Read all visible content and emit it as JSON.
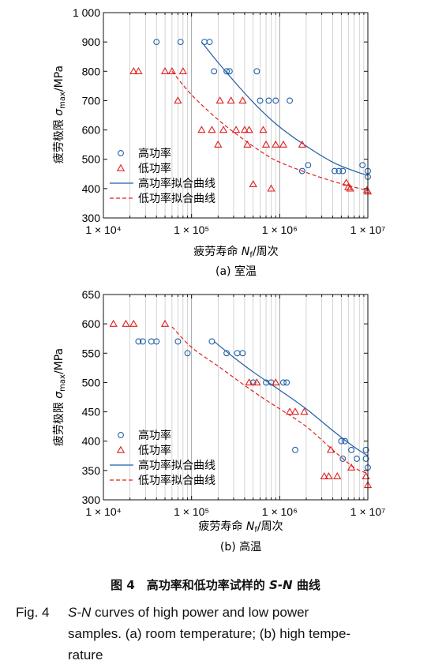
{
  "panels": [
    {
      "caption": "(a) 室温",
      "ylabel_main": "疲劳极限 ",
      "ylabel_sigma": "σ",
      "ylabel_sub": "max",
      "ylabel_unit": "/MPa",
      "xlabel_main": "疲劳寿命 ",
      "xlabel_n": "N",
      "xlabel_sub": "f",
      "xlabel_unit": "/周次",
      "legend": [
        "高功率",
        "低功率",
        "高功率拟合曲线",
        "低功率拟合曲线"
      ]
    },
    {
      "caption": "(b) 高温",
      "ylabel_main": "疲劳极限 ",
      "ylabel_sigma": "σ",
      "ylabel_sub": "max",
      "ylabel_unit": "/MPa",
      "xlabel_main": "疲劳寿命 ",
      "xlabel_n": "N",
      "xlabel_sub": "f",
      "xlabel_unit": "/周次",
      "legend": [
        "高功率",
        "低功率",
        "高功率拟合曲线",
        "低功率拟合曲线"
      ]
    }
  ],
  "caption": {
    "zh_prefix": "图 4　高功率和低功率试样的 ",
    "zh_sn": "S-N",
    "zh_suffix": " 曲线",
    "en_label": "Fig. 4",
    "en_sn": "S-N",
    "en_line1": " curves of high power and low power",
    "en_line2": "samples. (a) room temperature; (b) high tempe-",
    "en_line3": "rature"
  },
  "colors": {
    "high": "#1f5fa8",
    "low": "#e02020"
  },
  "chart_data": [
    {
      "type": "scatter",
      "x_scale": "log",
      "xlim": [
        10000,
        10000000
      ],
      "ylim": [
        300,
        1000
      ],
      "x_ticks": [
        10000,
        100000,
        1000000,
        10000000
      ],
      "x_tick_labels": [
        "1 × 10⁴",
        "1 × 10⁵",
        "1 × 10⁶",
        "1 × 10⁷"
      ],
      "y_ticks": [
        300,
        400,
        500,
        600,
        700,
        800,
        900,
        1000
      ],
      "y_tick_labels": [
        "300",
        "400",
        "500",
        "600",
        "700",
        "800",
        "900",
        "1 000"
      ],
      "grid": "vertical",
      "legend_position": "bottom-left",
      "series": [
        {
          "name": "高功率",
          "marker": "circle",
          "color": "#1f5fa8",
          "points": [
            [
              40000,
              900
            ],
            [
              75000,
              900
            ],
            [
              140000,
              900
            ],
            [
              160000,
              900
            ],
            [
              180000,
              800
            ],
            [
              250000,
              800
            ],
            [
              270000,
              800
            ],
            [
              550000,
              800
            ],
            [
              600000,
              700
            ],
            [
              750000,
              700
            ],
            [
              900000,
              700
            ],
            [
              1300000,
              700
            ],
            [
              1800000,
              460
            ],
            [
              2100000,
              480
            ],
            [
              4200000,
              460
            ],
            [
              4700000,
              460
            ],
            [
              5200000,
              460
            ],
            [
              8700000,
              480
            ],
            [
              10000000,
              460
            ],
            [
              10000000,
              440
            ]
          ]
        },
        {
          "name": "低功率",
          "marker": "triangle",
          "color": "#e02020",
          "points": [
            [
              22000,
              800
            ],
            [
              25000,
              800
            ],
            [
              50000,
              800
            ],
            [
              60000,
              800
            ],
            [
              70000,
              700
            ],
            [
              80000,
              800
            ],
            [
              130000,
              600
            ],
            [
              170000,
              600
            ],
            [
              200000,
              550
            ],
            [
              210000,
              700
            ],
            [
              230000,
              600
            ],
            [
              280000,
              700
            ],
            [
              320000,
              600
            ],
            [
              380000,
              700
            ],
            [
              400000,
              600
            ],
            [
              430000,
              550
            ],
            [
              450000,
              600
            ],
            [
              500000,
              415
            ],
            [
              650000,
              600
            ],
            [
              700000,
              550
            ],
            [
              800000,
              400
            ],
            [
              900000,
              550
            ],
            [
              1100000,
              550
            ],
            [
              1800000,
              550
            ],
            [
              5700000,
              420
            ],
            [
              6000000,
              405
            ],
            [
              6300000,
              400
            ],
            [
              9800000,
              395
            ],
            [
              10000000,
              390
            ]
          ]
        },
        {
          "name": "高功率拟合曲线",
          "line": "solid",
          "color": "#1f5fa8",
          "x": [
            130000,
            200000,
            350000,
            600000,
            1000000,
            2000000,
            4000000,
            7000000,
            10000000
          ],
          "y": [
            900,
            830,
            745,
            670,
            610,
            545,
            490,
            460,
            445
          ]
        },
        {
          "name": "低功率拟合曲线",
          "line": "dashed",
          "color": "#e02020",
          "x": [
            60000,
            100000,
            200000,
            400000,
            700000,
            1000000,
            2000000,
            4000000,
            7000000,
            10000000
          ],
          "y": [
            800,
            720,
            635,
            565,
            515,
            490,
            455,
            425,
            405,
            393
          ]
        }
      ]
    },
    {
      "type": "scatter",
      "x_scale": "log",
      "xlim": [
        10000,
        10000000
      ],
      "ylim": [
        300,
        650
      ],
      "x_ticks": [
        10000,
        100000,
        1000000,
        10000000
      ],
      "x_tick_labels": [
        "1 × 10⁴",
        "1 × 10⁵",
        "1 × 10⁶",
        "1 × 10⁷"
      ],
      "y_ticks": [
        300,
        350,
        400,
        450,
        500,
        550,
        600,
        650
      ],
      "y_tick_labels": [
        "300",
        "350",
        "400",
        "450",
        "500",
        "550",
        "600",
        "650"
      ],
      "grid": "vertical",
      "legend_position": "bottom-left",
      "series": [
        {
          "name": "高功率",
          "marker": "circle",
          "color": "#1f5fa8",
          "points": [
            [
              25000,
              570
            ],
            [
              28000,
              570
            ],
            [
              35000,
              570
            ],
            [
              40000,
              570
            ],
            [
              70000,
              570
            ],
            [
              90000,
              550
            ],
            [
              170000,
              570
            ],
            [
              250000,
              550
            ],
            [
              330000,
              550
            ],
            [
              380000,
              550
            ],
            [
              500000,
              500
            ],
            [
              700000,
              500
            ],
            [
              800000,
              500
            ],
            [
              1100000,
              500
            ],
            [
              1200000,
              500
            ],
            [
              1500000,
              385
            ],
            [
              5000000,
              400
            ],
            [
              5500000,
              400
            ],
            [
              5200000,
              370
            ],
            [
              6500000,
              385
            ],
            [
              7500000,
              370
            ],
            [
              9500000,
              385
            ],
            [
              9500000,
              370
            ],
            [
              10000000,
              355
            ]
          ]
        },
        {
          "name": "低功率",
          "marker": "triangle",
          "color": "#e02020",
          "points": [
            [
              13000,
              600
            ],
            [
              18000,
              600
            ],
            [
              22000,
              600
            ],
            [
              50000,
              600
            ],
            [
              450000,
              500
            ],
            [
              550000,
              500
            ],
            [
              900000,
              500
            ],
            [
              1300000,
              450
            ],
            [
              1500000,
              450
            ],
            [
              1900000,
              450
            ],
            [
              3200000,
              340
            ],
            [
              3600000,
              340
            ],
            [
              3800000,
              385
            ],
            [
              4500000,
              340
            ],
            [
              6500000,
              355
            ],
            [
              9500000,
              340
            ],
            [
              10000000,
              325
            ]
          ]
        },
        {
          "name": "高功率拟合曲线",
          "line": "solid",
          "color": "#1f5fa8",
          "x": [
            180000,
            300000,
            500000,
            1000000,
            2000000,
            4000000,
            7000000,
            10000000
          ],
          "y": [
            570,
            543,
            518,
            487,
            455,
            418,
            390,
            375
          ]
        },
        {
          "name": "低功率拟合曲线",
          "line": "dashed",
          "color": "#e02020",
          "x": [
            60000,
            100000,
            200000,
            400000,
            700000,
            1000000,
            2000000,
            4000000,
            7000000,
            10000000
          ],
          "y": [
            595,
            560,
            528,
            495,
            470,
            455,
            425,
            385,
            355,
            345
          ]
        }
      ]
    }
  ]
}
